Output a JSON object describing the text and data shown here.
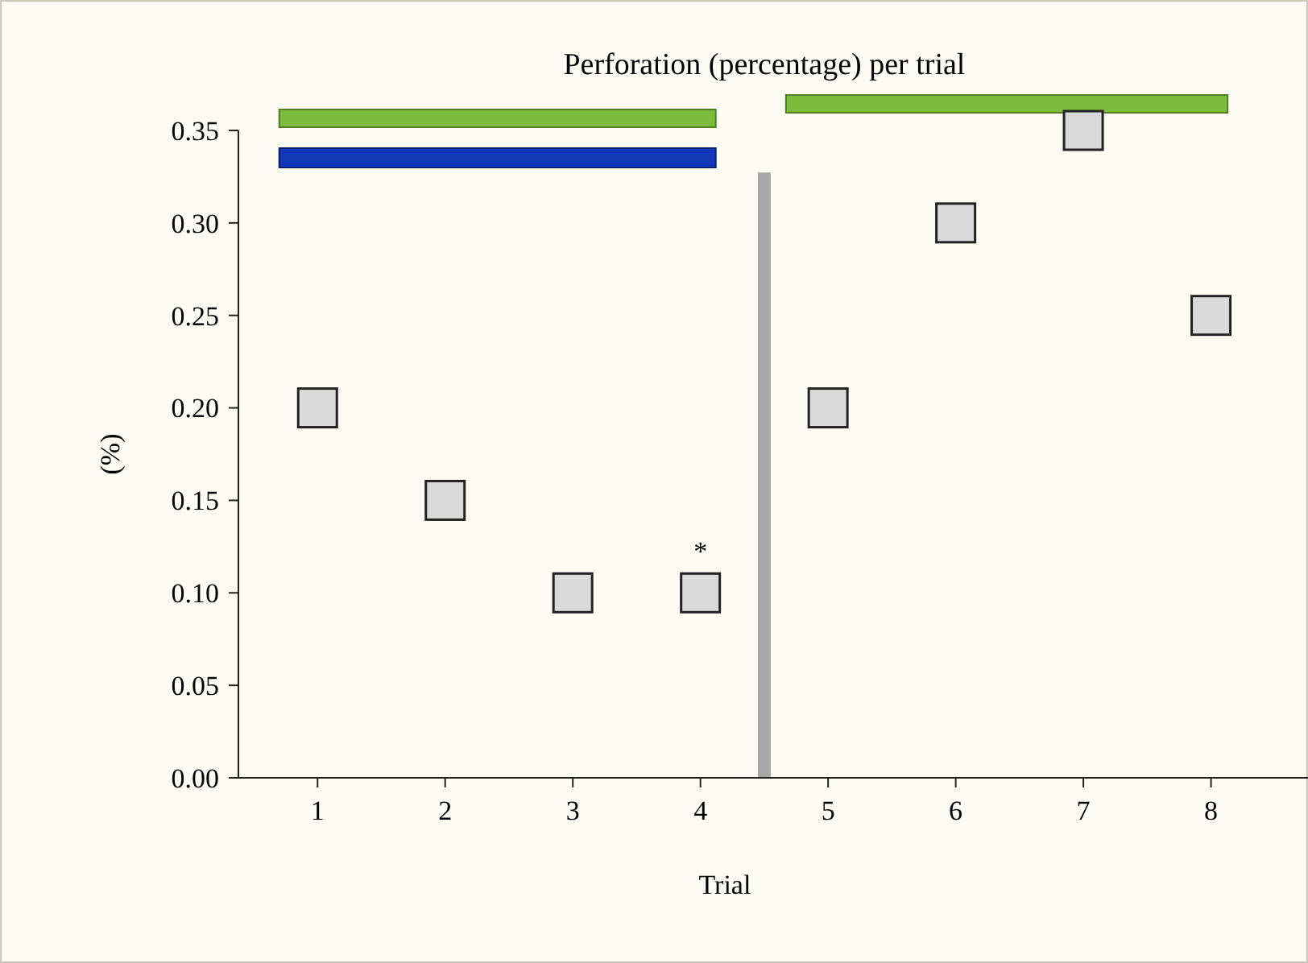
{
  "chart_data": {
    "type": "scatter",
    "title": "Perforation (percentage) per trial",
    "xlabel": "Trial",
    "ylabel": "(%)",
    "x": [
      1,
      2,
      3,
      4,
      5,
      6,
      7,
      8
    ],
    "series": [
      {
        "color": "#d9d9d9",
        "values": [
          0.2,
          0.15,
          0.1,
          0.1,
          0.2,
          0.3,
          0.35,
          0.25
        ]
      }
    ],
    "xlim": [
      0.38,
      8.76
    ],
    "xticks": [
      1,
      2,
      3,
      4,
      5,
      6,
      7,
      8
    ],
    "ylim": [
      0,
      0.35
    ],
    "yticks": [
      {
        "value": 0,
        "label": "0.00"
      },
      {
        "value": 0.05,
        "label": "0.05"
      },
      {
        "value": 0.1,
        "label": "0.10"
      },
      {
        "value": 0.15,
        "label": "0.15"
      },
      {
        "value": 0.2,
        "label": "0.20"
      },
      {
        "value": 0.25,
        "label": "0.25"
      },
      {
        "value": 0.3,
        "label": "0.30"
      },
      {
        "value": 0.35,
        "label": "0.35"
      }
    ],
    "marker": "square",
    "grid": false,
    "ref_lines": [
      {
        "axis": "x",
        "value": 4.5,
        "color": "#a6a6a6"
      }
    ],
    "annotations": [
      {
        "text": "*",
        "x": 4,
        "y": 0.1
      }
    ]
  }
}
